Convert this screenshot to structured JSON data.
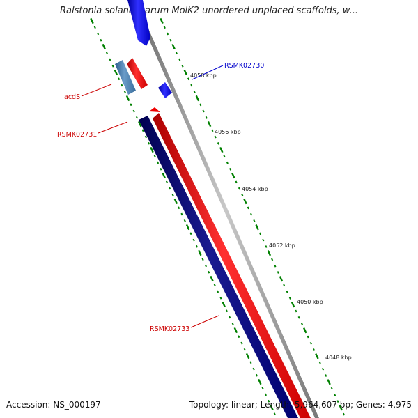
{
  "title": "Ralstonia solanacearum MolK2 unordered unplaced scaffolds, w...",
  "footer": {
    "accession": "Accession: NS_000197",
    "summary": "Topology: linear; Length: 5,964,607 bp; Genes: 4,975"
  },
  "scale_labels": [
    "4058 kbp",
    "4056 kbp",
    "4054 kbp",
    "4052 kbp",
    "4050 kbp",
    "4048 kbp"
  ],
  "gene_labels": [
    "RSMK02730",
    "acdS",
    "RSMK02731",
    "RSMK02733"
  ],
  "colors": {
    "forward_strand": "#ff0000",
    "reverse_strand": "#0000cc",
    "dark_reverse": "#000080",
    "highlight": "#4682b4",
    "backbone": "#999999",
    "tick": "#008000"
  }
}
